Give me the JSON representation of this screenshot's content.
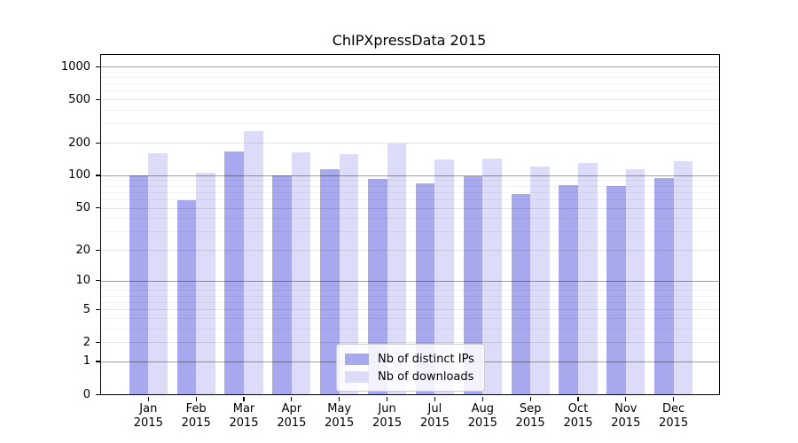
{
  "title": "ChIPXpressData 2015",
  "chart_data": {
    "type": "bar",
    "title": "ChIPXpressData 2015",
    "x_months": [
      "Jan",
      "Feb",
      "Mar",
      "Apr",
      "May",
      "Jun",
      "Jul",
      "Aug",
      "Sep",
      "Oct",
      "Nov",
      "Dec"
    ],
    "x_year": "2015",
    "categories": [
      "Jan 2015",
      "Feb 2015",
      "Mar 2015",
      "Apr 2015",
      "May 2015",
      "Jun 2015",
      "Jul 2015",
      "Aug 2015",
      "Sep 2015",
      "Oct 2015",
      "Nov 2015",
      "Dec 2015"
    ],
    "series": [
      {
        "name": "Nb of distinct IPs",
        "color": "#a8a8ee",
        "values": [
          100,
          59,
          166,
          100,
          113,
          93,
          84,
          98,
          67,
          81,
          79,
          94
        ]
      },
      {
        "name": "Nb of downloads",
        "color": "#dcdcf8",
        "values": [
          160,
          106,
          255,
          162,
          157,
          196,
          140,
          143,
          121,
          129,
          113,
          135
        ]
      }
    ],
    "xlabel": "",
    "ylabel": "",
    "yscale": "symlog (log1p)",
    "ylim": [
      0,
      1280
    ],
    "y_ticks": [
      0,
      1,
      2,
      5,
      10,
      20,
      50,
      100,
      200,
      500,
      1000
    ],
    "y_major_gridlines": [
      1,
      10,
      100,
      1000
    ],
    "y_minor_ticks": [
      3,
      4,
      6,
      7,
      8,
      9,
      30,
      40,
      60,
      70,
      80,
      90,
      300,
      400,
      600,
      700,
      800,
      900
    ],
    "grid": "horizontal",
    "legend_position": "lower center, inside plot"
  },
  "legend": {
    "items": [
      {
        "label": "Nb of distinct IPs",
        "color": "#a8a8ee"
      },
      {
        "label": "Nb of downloads",
        "color": "#dcdcf8"
      }
    ]
  }
}
